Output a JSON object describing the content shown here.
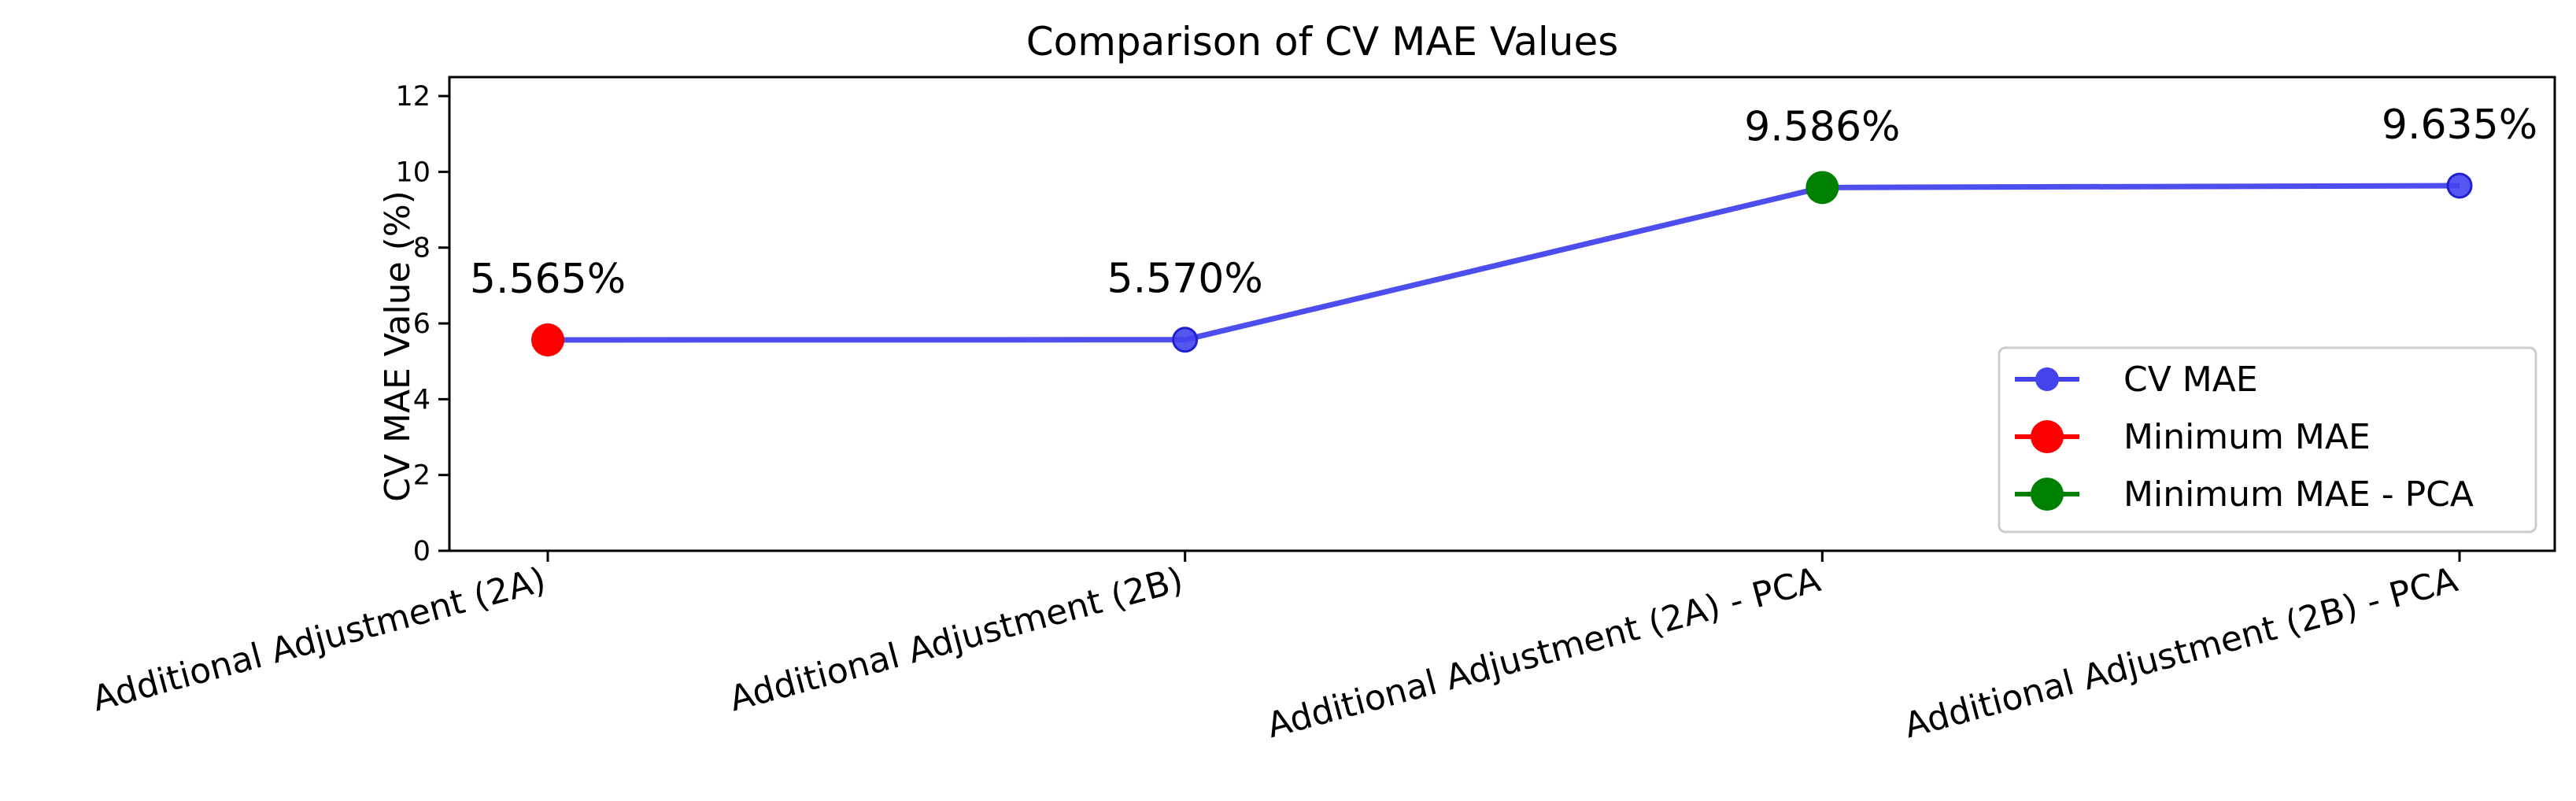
{
  "chart_data": {
    "type": "line",
    "title": "Comparison of CV MAE Values",
    "xlabel": "",
    "ylabel": "CV MAE Value (%)",
    "ylim": [
      0,
      12.5
    ],
    "yticks": [
      0,
      2,
      4,
      6,
      8,
      10,
      12
    ],
    "categories": [
      "Additional Adjustment (2A)",
      "Additional Adjustment (2B)",
      "Additional Adjustment (2A) - PCA",
      "Additional Adjustment (2B) - PCA"
    ],
    "series": [
      {
        "name": "CV MAE",
        "values": [
          5.565,
          5.57,
          9.586,
          9.635
        ],
        "color": "#4444ee"
      }
    ],
    "data_labels": [
      "5.565%",
      "5.570%",
      "9.586%",
      "9.635%"
    ],
    "highlights": [
      {
        "name": "Minimum MAE",
        "index": 0,
        "color": "#ff0000"
      },
      {
        "name": "Minimum MAE - PCA",
        "index": 2,
        "color": "#008000"
      }
    ],
    "grid": false,
    "legend_position": "lower-right"
  }
}
